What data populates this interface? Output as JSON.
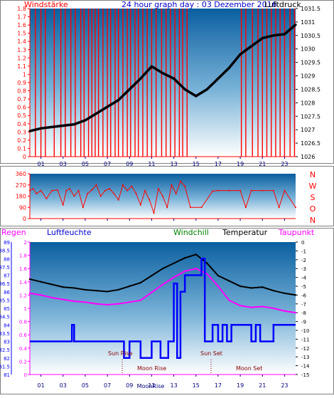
{
  "top": {
    "title": "24 hour graph day : 03 Dezember 2016",
    "left_label": "Windstärke",
    "right_label": "Luftdruck",
    "left_ticks": [
      "0",
      "0.1",
      "0.2",
      "0.3",
      "0.4",
      "0.5",
      "0.6",
      "0.7",
      "0.8",
      "0.9",
      "1",
      "1.1",
      "1.2",
      "1.3",
      "1.4",
      "1.5",
      "1.6",
      "1.7",
      "1.8"
    ],
    "right_ticks": [
      "1026",
      "1026.5",
      "1027",
      "1027.5",
      "1028",
      "1028.5",
      "1029",
      "1029.5",
      "1030",
      "1030.5",
      "1031",
      "1031.5"
    ],
    "x_ticks": [
      "01",
      "03",
      "05",
      "07",
      "09",
      "11",
      "13",
      "15",
      "17",
      "19",
      "21",
      "23"
    ]
  },
  "mid": {
    "left_ticks": [
      "0",
      "90",
      "180",
      "270",
      "360"
    ],
    "compass": [
      "N",
      "W",
      "S",
      "O",
      "N"
    ],
    "x_ticks": [
      "01",
      "03",
      "05",
      "07",
      "09",
      "11",
      "13",
      "15",
      "17",
      "19",
      "21",
      "23"
    ]
  },
  "bottom": {
    "labels": {
      "regen": "Regen",
      "luftfeuchte": "Luftfeuchte",
      "windchill": "Windchill",
      "temperatur": "Temperatur",
      "taupunkt": "Taupunkt"
    },
    "rain_ticks": [
      "0",
      "0.2",
      "0.4",
      "0.6",
      "0.8",
      "1",
      "1.2",
      "1.4",
      "1.6",
      "1.8",
      "2"
    ],
    "humidity_ticks": [
      "81",
      "81.5",
      "82",
      "82.5",
      "83",
      "83.5",
      "84",
      "84.5",
      "85",
      "85.5",
      "86",
      "86.5",
      "87",
      "87.5",
      "88",
      "88.5",
      "89"
    ],
    "temp_ticks": [
      "-15",
      "-14",
      "-13",
      "-12",
      "-11",
      "-10",
      "-9",
      "-8",
      "-7",
      "-6",
      "-5",
      "-4",
      "-3",
      "-2",
      "-1",
      "0"
    ],
    "x_ticks": [
      "01",
      "03",
      "05",
      "07",
      "09",
      "11",
      "13",
      "15",
      "17",
      "19",
      "21",
      "23"
    ],
    "annotations": {
      "sun_rise": "Sun Rise",
      "sun_set": "Sun Set",
      "moon_rise": "Moon Rise",
      "moon_set": "Moon Set",
      "moonrise_x": "MoonRise"
    }
  },
  "colors": {
    "wind": "#ff0000",
    "pressure": "#000000",
    "humidity": "#0000ff",
    "temperature": "#000000",
    "dewpoint": "#ff00ff",
    "rain_axis": "#ff00ff",
    "label_blue": "#0000cc",
    "label_green": "#008000"
  },
  "chart_data": [
    {
      "type": "line",
      "title": "24 hour graph day : 03 Dezember 2016",
      "x_unit": "hour",
      "x_range": [
        0,
        24
      ],
      "series": [
        {
          "name": "Luftdruck",
          "axis": "right",
          "x": [
            0,
            1,
            2,
            3,
            4,
            5,
            6,
            7,
            8,
            9,
            10,
            11,
            12,
            13,
            14,
            15,
            16,
            17,
            18,
            19,
            20,
            21,
            22,
            23,
            24
          ],
          "values": [
            1026.95,
            1027.05,
            1027.1,
            1027.15,
            1027.2,
            1027.35,
            1027.6,
            1027.85,
            1028.1,
            1028.5,
            1028.9,
            1029.35,
            1029.1,
            1028.9,
            1028.5,
            1028.25,
            1028.5,
            1028.9,
            1029.3,
            1029.8,
            1030.1,
            1030.4,
            1030.5,
            1030.55,
            1030.9
          ]
        },
        {
          "name": "Windstärke",
          "axis": "left",
          "kind": "bars",
          "x": [
            0.5,
            1.0,
            1.4,
            2.2,
            2.8,
            3.2,
            3.7,
            4.1,
            4.6,
            4.9,
            5.3,
            5.6,
            5.9,
            6.2,
            6.6,
            7.0,
            7.3,
            7.7,
            8.0,
            8.4,
            8.8,
            9.1,
            9.5,
            9.8,
            10.2,
            10.6,
            11.0,
            11.4,
            11.9,
            12.3,
            12.7,
            13.1,
            13.5,
            13.8,
            14.2,
            19.1,
            19.5,
            20.1,
            20.6,
            21.0,
            21.4,
            21.8,
            22.2,
            22.6,
            23.0,
            23.5,
            23.9
          ],
          "values": [
            1.8,
            1.8,
            1.8,
            1.8,
            1.8,
            1.8,
            1.8,
            1.8,
            1.8,
            1.8,
            1.8,
            1.8,
            1.8,
            1.8,
            1.8,
            1.8,
            1.8,
            1.8,
            1.8,
            1.8,
            1.8,
            1.8,
            1.8,
            1.8,
            1.8,
            1.8,
            1.8,
            1.8,
            1.8,
            1.8,
            1.8,
            1.8,
            1.8,
            1.8,
            1.8,
            1.8,
            1.8,
            1.8,
            1.8,
            1.8,
            1.8,
            1.8,
            1.8,
            1.8,
            1.8,
            1.8,
            1.8
          ]
        }
      ],
      "left_axis": {
        "label": "Windstärke",
        "range": [
          0,
          1.8
        ]
      },
      "right_axis": {
        "label": "Luftdruck",
        "range": [
          1026,
          1031.5
        ]
      },
      "xticks": [
        "01",
        "03",
        "05",
        "07",
        "09",
        "11",
        "13",
        "15",
        "17",
        "19",
        "21",
        "23"
      ],
      "grid": false
    },
    {
      "type": "line",
      "x_unit": "hour",
      "x_range": [
        0,
        24
      ],
      "series": [
        {
          "name": "wind direction",
          "x": [
            0,
            0.3,
            0.6,
            1.0,
            1.5,
            2.0,
            2.5,
            3.0,
            3.3,
            3.6,
            4.0,
            4.4,
            4.8,
            5.2,
            5.6,
            6.0,
            6.4,
            6.8,
            7.2,
            7.6,
            8.0,
            8.4,
            8.8,
            9.2,
            9.6,
            10.0,
            10.4,
            10.8,
            11.2,
            11.6,
            12.0,
            12.4,
            12.8,
            13.2,
            13.6,
            14.0,
            14.5,
            15.5,
            16.5,
            17.0,
            18.0,
            19.0,
            19.5,
            20.0,
            21.0,
            22.0,
            22.5,
            23.0,
            24.0
          ],
          "values": [
            225,
            240,
            200,
            225,
            160,
            225,
            230,
            110,
            225,
            240,
            180,
            225,
            90,
            200,
            230,
            270,
            180,
            225,
            240,
            200,
            150,
            270,
            225,
            260,
            200,
            110,
            225,
            150,
            45,
            240,
            180,
            90,
            270,
            200,
            300,
            260,
            90,
            90,
            220,
            225,
            225,
            225,
            90,
            225,
            225,
            225,
            90,
            225,
            90
          ]
        }
      ],
      "y_range": [
        0,
        360
      ],
      "yticks": [
        "0",
        "90",
        "180",
        "270",
        "360"
      ],
      "right_labels": [
        "N",
        "W",
        "S",
        "O",
        "N"
      ],
      "grid": false
    },
    {
      "type": "line",
      "x_unit": "hour",
      "x_range": [
        0,
        24
      ],
      "series": [
        {
          "name": "Temperatur",
          "axis": "temp",
          "x": [
            0,
            1,
            2,
            3,
            4,
            5,
            6,
            7,
            8,
            9,
            10,
            11,
            12,
            13,
            14,
            15,
            16,
            17,
            18,
            19,
            20,
            21,
            22,
            23,
            24
          ],
          "values": [
            -4.2,
            -4.5,
            -4.8,
            -5.1,
            -5.2,
            -5.4,
            -5.5,
            -5.6,
            -5.4,
            -5.0,
            -4.6,
            -3.8,
            -3.0,
            -2.4,
            -1.8,
            -1.4,
            -2.4,
            -3.8,
            -4.4,
            -5.0,
            -5.2,
            -5.1,
            -5.5,
            -5.8,
            -6.0
          ]
        },
        {
          "name": "Taupunkt",
          "axis": "temp",
          "x": [
            0,
            1,
            2,
            3,
            4,
            5,
            6,
            7,
            8,
            9,
            10,
            11,
            12,
            13,
            14,
            15,
            16,
            17,
            18,
            19,
            20,
            21,
            22,
            23,
            24
          ],
          "values": [
            -5.8,
            -6.0,
            -6.3,
            -6.5,
            -6.7,
            -6.8,
            -7.0,
            -7.1,
            -7.0,
            -6.8,
            -6.6,
            -5.7,
            -4.8,
            -4.0,
            -3.3,
            -3.0,
            -3.6,
            -5.0,
            -6.6,
            -7.2,
            -7.4,
            -7.3,
            -7.5,
            -7.8,
            -8.0
          ]
        },
        {
          "name": "Luftfeuchte",
          "axis": "humidity",
          "x": [
            0,
            3.8,
            3.8,
            4.0,
            4.0,
            8.5,
            8.5,
            9.0,
            9.0,
            10.0,
            10.0,
            11.0,
            11.0,
            11.8,
            11.8,
            12.5,
            12.5,
            13.0,
            13.0,
            13.3,
            13.3,
            13.6,
            13.6,
            14.0,
            14.0,
            15.5,
            15.5,
            15.8,
            15.8,
            16.5,
            16.5,
            17.0,
            17.0,
            17.4,
            17.4,
            17.8,
            17.8,
            18.2,
            18.2,
            20.0,
            20.0,
            20.4,
            20.4,
            20.8,
            20.8,
            22.0,
            22.0,
            24
          ],
          "values": [
            83,
            83,
            84,
            84,
            83,
            83,
            82,
            82,
            83,
            83,
            82,
            82,
            83,
            83,
            82,
            82,
            83,
            83,
            86.5,
            86.5,
            82,
            82,
            86,
            86,
            87,
            87,
            88,
            88,
            83,
            83,
            84,
            84,
            83,
            83,
            84,
            84,
            83,
            83,
            84,
            84,
            83,
            83,
            84,
            84,
            83,
            83,
            84,
            84
          ]
        },
        {
          "name": "Regen",
          "axis": "rain",
          "x": [
            0,
            24
          ],
          "values": [
            0,
            0
          ]
        }
      ],
      "left_axes": [
        {
          "label": "Regen",
          "range": [
            0,
            2
          ]
        },
        {
          "label": "Luftfeuchte",
          "range": [
            81,
            89
          ]
        }
      ],
      "right_axis": {
        "range": [
          -15,
          0
        ]
      },
      "annotations": [
        "Sun Rise",
        "Sun Set",
        "Moon Rise",
        "Moon Set",
        "MoonRise"
      ],
      "xticks": [
        "01",
        "03",
        "05",
        "07",
        "09",
        "11",
        "13",
        "15",
        "17",
        "19",
        "21",
        "23"
      ],
      "grid": false
    }
  ]
}
